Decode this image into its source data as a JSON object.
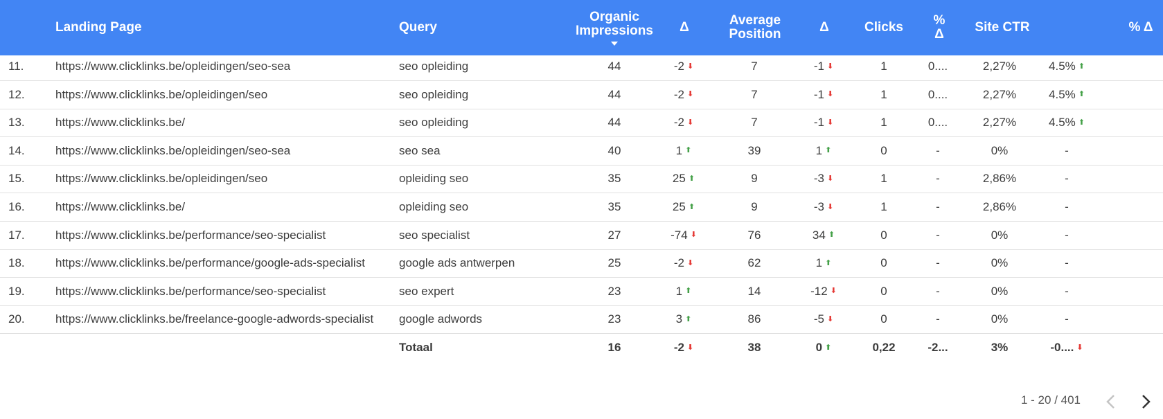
{
  "headers": {
    "landing_page": "Landing Page",
    "query": "Query",
    "impressions_line1": "Organic",
    "impressions_line2": "Impressions",
    "delta": "Δ",
    "position_line1": "Average",
    "position_line2": "Position",
    "delta2": "Δ",
    "clicks": "Clicks",
    "pct_delta_line1": "%",
    "pct_delta_line2": "Δ",
    "site_ctr": "Site CTR",
    "pct_delta2": "% Δ"
  },
  "rows": [
    {
      "num": "11.",
      "page": "https://www.clicklinks.be/opleidingen/seo-sea",
      "query": "seo opleiding",
      "impr": "44",
      "d1": "-2",
      "d1_dir": "down",
      "pos": "7",
      "d2": "-1",
      "d2_dir": "down",
      "clicks": "1",
      "pd": "0....",
      "ctr": "2,27%",
      "pd2": "4.5%",
      "pd2_dir": "up"
    },
    {
      "num": "12.",
      "page": "https://www.clicklinks.be/opleidingen/seo",
      "query": "seo opleiding",
      "impr": "44",
      "d1": "-2",
      "d1_dir": "down",
      "pos": "7",
      "d2": "-1",
      "d2_dir": "down",
      "clicks": "1",
      "pd": "0....",
      "ctr": "2,27%",
      "pd2": "4.5%",
      "pd2_dir": "up"
    },
    {
      "num": "13.",
      "page": "https://www.clicklinks.be/",
      "query": "seo opleiding",
      "impr": "44",
      "d1": "-2",
      "d1_dir": "down",
      "pos": "7",
      "d2": "-1",
      "d2_dir": "down",
      "clicks": "1",
      "pd": "0....",
      "ctr": "2,27%",
      "pd2": "4.5%",
      "pd2_dir": "up"
    },
    {
      "num": "14.",
      "page": "https://www.clicklinks.be/opleidingen/seo-sea",
      "query": "seo sea",
      "impr": "40",
      "d1": "1",
      "d1_dir": "up",
      "pos": "39",
      "d2": "1",
      "d2_dir": "up",
      "clicks": "0",
      "pd": "-",
      "ctr": "0%",
      "pd2": "-",
      "pd2_dir": ""
    },
    {
      "num": "15.",
      "page": "https://www.clicklinks.be/opleidingen/seo",
      "query": "opleiding seo",
      "impr": "35",
      "d1": "25",
      "d1_dir": "up",
      "pos": "9",
      "d2": "-3",
      "d2_dir": "down",
      "clicks": "1",
      "pd": "-",
      "ctr": "2,86%",
      "pd2": "-",
      "pd2_dir": ""
    },
    {
      "num": "16.",
      "page": "https://www.clicklinks.be/",
      "query": "opleiding seo",
      "impr": "35",
      "d1": "25",
      "d1_dir": "up",
      "pos": "9",
      "d2": "-3",
      "d2_dir": "down",
      "clicks": "1",
      "pd": "-",
      "ctr": "2,86%",
      "pd2": "-",
      "pd2_dir": ""
    },
    {
      "num": "17.",
      "page": "https://www.clicklinks.be/performance/seo-specialist",
      "query": "seo specialist",
      "impr": "27",
      "d1": "-74",
      "d1_dir": "down",
      "pos": "76",
      "d2": "34",
      "d2_dir": "up",
      "clicks": "0",
      "pd": "-",
      "ctr": "0%",
      "pd2": "-",
      "pd2_dir": ""
    },
    {
      "num": "18.",
      "page": "https://www.clicklinks.be/performance/google-ads-specialist",
      "query": "google ads antwerpen",
      "impr": "25",
      "d1": "-2",
      "d1_dir": "down",
      "pos": "62",
      "d2": "1",
      "d2_dir": "up",
      "clicks": "0",
      "pd": "-",
      "ctr": "0%",
      "pd2": "-",
      "pd2_dir": ""
    },
    {
      "num": "19.",
      "page": "https://www.clicklinks.be/performance/seo-specialist",
      "query": "seo expert",
      "impr": "23",
      "d1": "1",
      "d1_dir": "up",
      "pos": "14",
      "d2": "-12",
      "d2_dir": "down",
      "clicks": "0",
      "pd": "-",
      "ctr": "0%",
      "pd2": "-",
      "pd2_dir": ""
    },
    {
      "num": "20.",
      "page": "https://www.clicklinks.be/freelance-google-adwords-specialist",
      "query": "google adwords",
      "impr": "23",
      "d1": "3",
      "d1_dir": "up",
      "pos": "86",
      "d2": "-5",
      "d2_dir": "down",
      "clicks": "0",
      "pd": "-",
      "ctr": "0%",
      "pd2": "-",
      "pd2_dir": ""
    }
  ],
  "total": {
    "label": "Totaal",
    "impr": "16",
    "d1": "-2",
    "d1_dir": "down",
    "pos": "38",
    "d2": "0",
    "d2_dir": "up",
    "clicks": "0,22",
    "pd": "-2...",
    "ctr": "3%",
    "pd2": "-0....",
    "pd2_dir": "down"
  },
  "pagination": {
    "range": "1 - 20 / 401",
    "prev_icon": "chevron-left-icon",
    "next_icon": "chevron-right-icon"
  },
  "colors": {
    "header_bg": "#4285f4",
    "down": "#e53935",
    "up": "#43a047"
  }
}
